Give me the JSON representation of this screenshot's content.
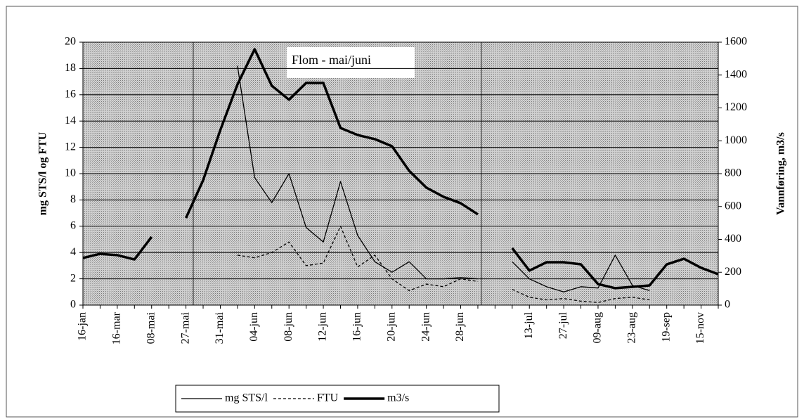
{
  "chart_data": {
    "type": "line",
    "annotation": "Flom - mai/juni",
    "ylabel": "mg STS/l og FTU",
    "y2label": "Vannføring, m3/s",
    "categories": [
      "16-jan",
      null,
      "16-mar",
      null,
      "08-mai",
      null,
      "27-mai",
      null,
      "31-mai",
      null,
      "04-jun",
      null,
      "08-jun",
      null,
      "12-jun",
      null,
      "16-jun",
      null,
      "20-jun",
      null,
      "24-jun",
      null,
      "28-jun",
      null,
      null,
      null,
      "13-jul",
      null,
      "27-jul",
      null,
      "09-aug",
      null,
      "23-aug",
      null,
      "19-sep",
      null,
      "15-nov",
      null
    ],
    "ylim": [
      0,
      20
    ],
    "yticks": [
      0,
      2,
      4,
      6,
      8,
      10,
      12,
      14,
      16,
      18,
      20
    ],
    "y2lim": [
      0,
      1600
    ],
    "y2ticks": [
      0,
      200,
      400,
      600,
      800,
      1000,
      1200,
      1400,
      1600
    ],
    "grid": true,
    "series": [
      {
        "name": "mg STS/l",
        "color": "#000000",
        "style": "solid",
        "values": [
          null,
          null,
          null,
          null,
          null,
          null,
          null,
          null,
          null,
          18.2,
          9.7,
          7.8,
          10.0,
          5.9,
          4.8,
          9.4,
          5.3,
          3.3,
          2.5,
          3.3,
          2.0,
          2.0,
          2.1,
          2.0,
          null,
          3.3,
          2.0,
          1.4,
          1.0,
          1.4,
          1.3,
          3.8,
          1.5,
          1.1,
          null,
          null,
          null,
          null
        ]
      },
      {
        "name": "FTU",
        "color": "#000000",
        "style": "dashed",
        "values": [
          null,
          null,
          null,
          null,
          null,
          null,
          null,
          null,
          null,
          3.8,
          3.6,
          4.0,
          4.8,
          3.0,
          3.2,
          6.0,
          2.9,
          3.8,
          2.0,
          1.1,
          1.6,
          1.4,
          2.0,
          1.8,
          null,
          1.2,
          0.6,
          0.4,
          0.5,
          0.3,
          0.2,
          0.5,
          0.6,
          0.4,
          null,
          null,
          null,
          null
        ]
      },
      {
        "name": "m3/s",
        "color": "#000000",
        "style": "thick",
        "axis": "y2",
        "values": [
          287,
          312,
          304,
          278,
          415,
          null,
          530,
          760,
          1065,
          1343,
          1557,
          1335,
          1250,
          1352,
          1352,
          1078,
          1035,
          1010,
          967,
          817,
          715,
          659,
          620,
          552,
          null,
          347,
          210,
          261,
          261,
          248,
          128,
          103,
          111,
          120,
          248,
          282,
          227,
          188
        ]
      }
    ]
  }
}
